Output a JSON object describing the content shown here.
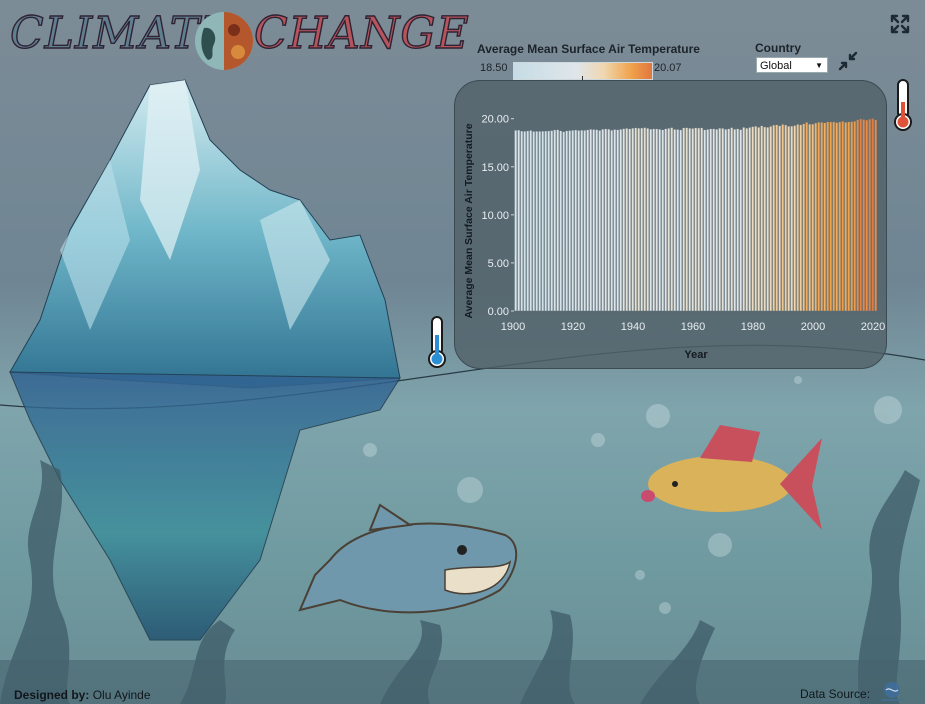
{
  "header": {
    "title_left": "CLIMATE",
    "title_right": "CHANGE",
    "expand_icon": "expand-arrows-icon"
  },
  "legend": {
    "title": "Average Mean Surface Air Temperature",
    "min_label": "18.50",
    "max_label": "20.07",
    "gradient_colors": [
      "#c6dce5",
      "#dfe6ea",
      "#efd7b0",
      "#f0a24b",
      "#e1763f"
    ]
  },
  "filter": {
    "label": "Country",
    "selected": "Global",
    "collapse_icon": "collapse-arrows-icon"
  },
  "chart_data": {
    "type": "bar",
    "xlabel": "Year",
    "ylabel": "Average Mean Surface Air Temperature",
    "xlim": [
      1900,
      2022
    ],
    "ylim": [
      0,
      20
    ],
    "y_ticks": [
      "0.00",
      "5.00",
      "10.00",
      "15.00",
      "20.00"
    ],
    "x_ticks": [
      "1900",
      "1920",
      "1940",
      "1960",
      "1980",
      "2000",
      "2020"
    ],
    "grid": false,
    "color_scale": {
      "min": 18.5,
      "max": 20.07
    },
    "x": [
      1901,
      1902,
      1903,
      1904,
      1905,
      1906,
      1907,
      1908,
      1909,
      1910,
      1911,
      1912,
      1913,
      1914,
      1915,
      1916,
      1917,
      1918,
      1919,
      1920,
      1921,
      1922,
      1923,
      1924,
      1925,
      1926,
      1927,
      1928,
      1929,
      1930,
      1931,
      1932,
      1933,
      1934,
      1935,
      1936,
      1937,
      1938,
      1939,
      1940,
      1941,
      1942,
      1943,
      1944,
      1945,
      1946,
      1947,
      1948,
      1949,
      1950,
      1951,
      1952,
      1953,
      1954,
      1955,
      1956,
      1957,
      1958,
      1959,
      1960,
      1961,
      1962,
      1963,
      1964,
      1965,
      1966,
      1967,
      1968,
      1969,
      1970,
      1971,
      1972,
      1973,
      1974,
      1975,
      1976,
      1977,
      1978,
      1979,
      1980,
      1981,
      1982,
      1983,
      1984,
      1985,
      1986,
      1987,
      1988,
      1989,
      1990,
      1991,
      1992,
      1993,
      1994,
      1995,
      1996,
      1997,
      1998,
      1999,
      2000,
      2001,
      2002,
      2003,
      2004,
      2005,
      2006,
      2007,
      2008,
      2009,
      2010,
      2011,
      2012,
      2013,
      2014,
      2015,
      2016,
      2017,
      2018,
      2019,
      2020,
      2021
    ],
    "values": [
      18.8,
      18.82,
      18.72,
      18.7,
      18.73,
      18.78,
      18.68,
      18.7,
      18.69,
      18.71,
      18.72,
      18.73,
      18.77,
      18.83,
      18.86,
      18.75,
      18.65,
      18.74,
      18.77,
      18.8,
      18.83,
      18.78,
      18.81,
      18.79,
      18.84,
      18.9,
      18.88,
      18.87,
      18.78,
      18.91,
      18.94,
      18.92,
      18.8,
      18.88,
      18.86,
      18.89,
      18.97,
      19.0,
      18.95,
      19.02,
      19.05,
      19.02,
      19.03,
      19.08,
      19.01,
      18.92,
      18.96,
      18.94,
      18.91,
      18.85,
      18.96,
      19.01,
      19.08,
      18.89,
      18.88,
      18.83,
      19.05,
      19.07,
      19.02,
      18.99,
      19.06,
      19.03,
      19.05,
      18.84,
      18.88,
      18.95,
      18.96,
      18.9,
      19.02,
      19.0,
      18.9,
      18.96,
      19.08,
      18.91,
      18.96,
      18.87,
      19.1,
      19.02,
      19.09,
      19.18,
      19.23,
      19.1,
      19.26,
      19.14,
      19.11,
      19.2,
      19.34,
      19.38,
      19.26,
      19.41,
      19.35,
      19.22,
      19.23,
      19.29,
      19.41,
      19.36,
      19.47,
      19.62,
      19.44,
      19.44,
      19.55,
      19.64,
      19.63,
      19.57,
      19.68,
      19.66,
      19.67,
      19.6,
      19.66,
      19.73,
      19.62,
      19.67,
      19.7,
      19.74,
      19.88,
      19.98,
      19.92,
      19.86,
      19.96,
      20.02,
      19.88
    ]
  },
  "footer": {
    "designed_by_label": "Designed by:",
    "designer_name": "Olu Ayinde",
    "data_source_label": "Data Source:"
  }
}
